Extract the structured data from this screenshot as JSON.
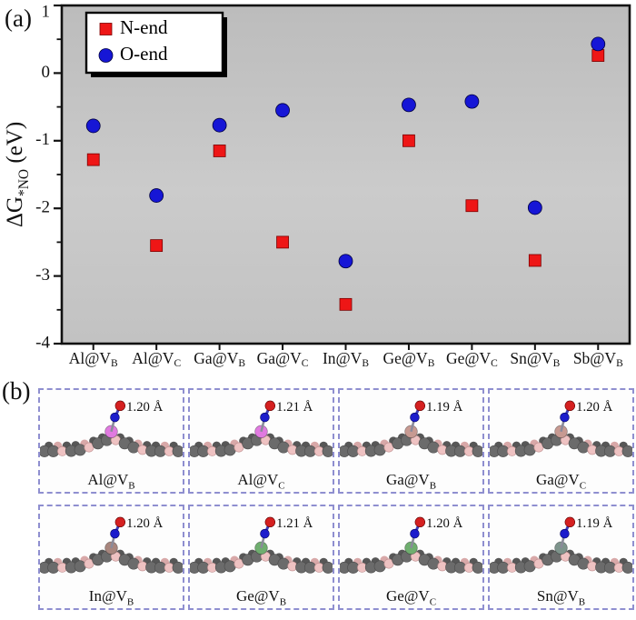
{
  "panel_a": {
    "label": "(a)",
    "ylabel": {
      "main": "ΔG",
      "sub": "*NO",
      "unit": " (eV)"
    },
    "legend": {
      "items": [
        {
          "label": "N-end",
          "marker": "square",
          "color": "#ee1616"
        },
        {
          "label": "O-end",
          "marker": "circle",
          "color": "#1616d6"
        }
      ]
    }
  },
  "chart_data": {
    "type": "scatter",
    "title": "",
    "xlabel": "",
    "ylabel": "ΔG*NO (eV)",
    "categories": [
      "Al@V_B",
      "Al@V_C",
      "Ga@V_B",
      "Ga@V_C",
      "In@V_B",
      "Ge@V_B",
      "Ge@V_C",
      "Sn@V_B",
      "Sb@V_B"
    ],
    "series": [
      {
        "name": "N-end",
        "marker": "square",
        "color": "#ee1616",
        "values": [
          -1.28,
          -2.55,
          -1.15,
          -2.5,
          -3.42,
          -1.0,
          -1.96,
          -2.77,
          0.26
        ]
      },
      {
        "name": "O-end",
        "marker": "circle",
        "color": "#1616d6",
        "values": [
          -0.78,
          -1.81,
          -0.77,
          -0.55,
          -2.78,
          -0.47,
          -0.42,
          -1.99,
          0.43
        ]
      }
    ],
    "ylim": [
      -4,
      1
    ],
    "yticks": [
      1,
      0,
      -1,
      -2,
      -3,
      -4
    ],
    "minor_tick_step": 0.5,
    "grid": false,
    "legend_position": "top-left",
    "plot_bg": "#c4c4c4",
    "frame_color": "#111111"
  },
  "panel_b": {
    "label": "(b)",
    "atom_colors": {
      "sheet_gray": "#6b6b6b",
      "sheet_gray_dark": "#575757",
      "sheet_pink": "#eec2c2",
      "sheet_pink_dark": "#d8a8a8",
      "nitrogen": "#1c1ccc",
      "oxygen": "#d42020",
      "bond": "#8a8a9a"
    },
    "cells": [
      {
        "caption": "Al@V_B",
        "bond_length": "1.20 Å",
        "dopant_color": "#e07ae0"
      },
      {
        "caption": "Al@V_C",
        "bond_length": "1.21 Å",
        "dopant_color": "#e07ae0"
      },
      {
        "caption": "Ga@V_B",
        "bond_length": "1.19 Å",
        "dopant_color": "#c79a92"
      },
      {
        "caption": "Ga@V_C",
        "bond_length": "1.20 Å",
        "dopant_color": "#c79a92"
      },
      {
        "caption": "In@V_B",
        "bond_length": "1.20 Å",
        "dopant_color": "#a8867e"
      },
      {
        "caption": "Ge@V_B",
        "bond_length": "1.21 Å",
        "dopant_color": "#6fae6f"
      },
      {
        "caption": "Ge@V_C",
        "bond_length": "1.20 Å",
        "dopant_color": "#6fae6f"
      },
      {
        "caption": "Sn@V_B",
        "bond_length": "1.19 Å",
        "dopant_color": "#7e948c"
      }
    ]
  }
}
